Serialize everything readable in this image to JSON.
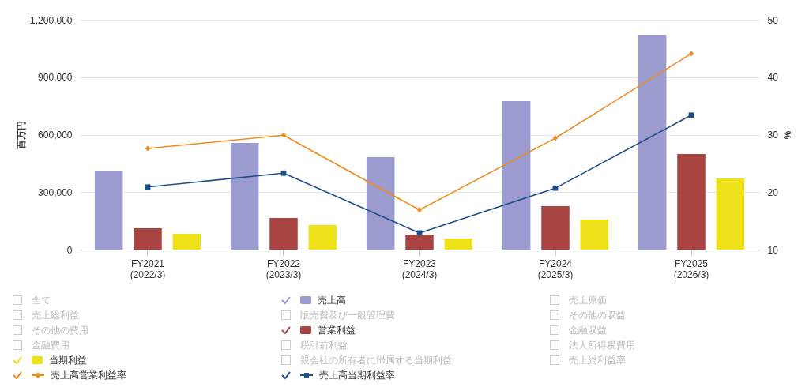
{
  "chart_data": {
    "type": "bar",
    "categories": [
      "FY2021\n(2022/3)",
      "FY2022\n(2023/3)",
      "FY2023\n(2024/3)",
      "FY2024\n(2025/3)",
      "FY2025\n(2026/3)"
    ],
    "ylabel": "百万円",
    "y2label": "%",
    "ylim": [
      0,
      1200000
    ],
    "yticks": [
      0,
      {
        "value": 300000,
        "label": "300,000"
      },
      {
        "value": 600000,
        "label": "600,000"
      },
      {
        "value": 900000,
        "label": "900,000"
      },
      {
        "value": 1200000,
        "label": "1,200,000"
      }
    ],
    "y2lim": [
      10,
      50
    ],
    "y2ticks": [
      10,
      20,
      30,
      40,
      50
    ],
    "grid": "y",
    "legend": "bottom",
    "series": [
      {
        "name": "売上高",
        "color": "#9b9bcf",
        "values": [
          412000,
          557000,
          482000,
          775000,
          1122000
        ]
      },
      {
        "name": "営業利益",
        "color": "#a84442",
        "values": [
          111000,
          165000,
          78000,
          227000,
          499000
        ]
      },
      {
        "name": "当期利益",
        "color": "#ede11a",
        "values": [
          82000,
          128000,
          58000,
          157000,
          371000
        ]
      },
      {
        "name": "売上高営業利益率",
        "type": "line",
        "axis": "y2",
        "marker": "diamond",
        "color": "#f08c1e",
        "values": [
          27.6,
          29.9,
          16.9,
          29.4,
          44.1
        ]
      },
      {
        "name": "売上高当期利益率",
        "type": "line",
        "axis": "y2",
        "marker": "square",
        "color": "#1f4e8c",
        "values": [
          20.9,
          23.3,
          12.9,
          20.7,
          33.4
        ]
      }
    ],
    "annotations": [
      "全て",
      "売上原価",
      "売上総利益",
      "販売費及び一般管理費",
      "その他の収益",
      "その他の費用",
      "金融収益",
      "金融費用",
      "税引前利益",
      "法人所得税費用",
      "親会社の所有者に帰属する当期利益",
      "売上総利益率"
    ]
  }
}
